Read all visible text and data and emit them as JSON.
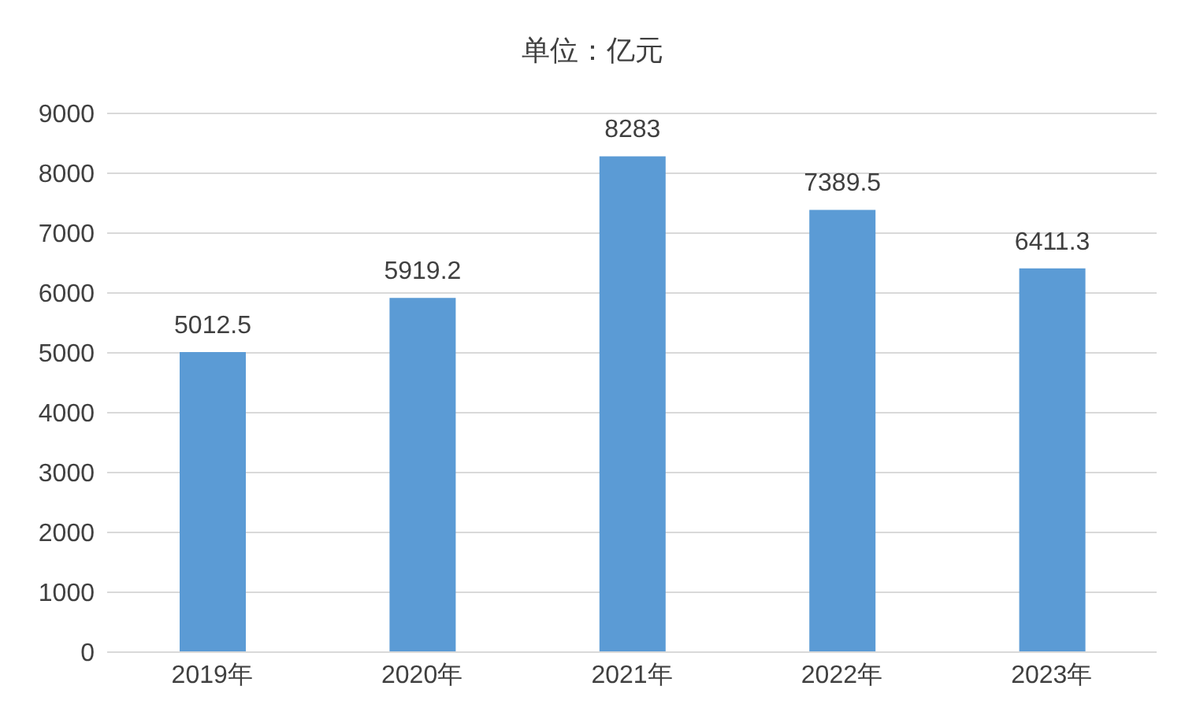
{
  "chart_data": {
    "type": "bar",
    "title": "单位：亿元",
    "categories": [
      "2019年",
      "2020年",
      "2021年",
      "2022年",
      "2023年"
    ],
    "values": [
      5012.5,
      5919.2,
      8283,
      7389.5,
      6411.3
    ],
    "color": "#5b9bd5",
    "ylim": [
      0,
      9000
    ],
    "yticks": [
      0,
      1000,
      2000,
      3000,
      4000,
      5000,
      6000,
      7000,
      8000,
      9000
    ],
    "grid": "y",
    "data_labels": true
  }
}
